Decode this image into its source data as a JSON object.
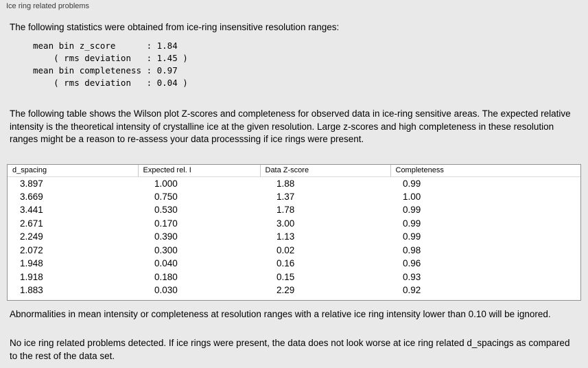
{
  "panel": {
    "title": "Ice ring related problems"
  },
  "stats": {
    "intro": "The following statistics were obtained from ice-ring insensitive resolution ranges:",
    "lines": [
      "mean bin z_score      : 1.84",
      "    ( rms deviation   : 1.45 )",
      "mean bin completeness : 0.97",
      "    ( rms deviation   : 0.04 )"
    ]
  },
  "table_intro": "The following table shows the Wilson plot Z-scores and completeness for observed data in ice-ring sensitive areas. The expected relative intensity is the theoretical intensity of crystalline ice at the given resolution. Large z-scores and high completeness in these resolution ranges might be a reason to re-assess your data processsing if ice rings were present.",
  "chart_data": {
    "type": "table",
    "columns": [
      "d_spacing",
      "Expected rel. I",
      "Data Z-score",
      "Completeness"
    ],
    "rows": [
      [
        "3.897",
        "1.000",
        "1.88",
        "0.99"
      ],
      [
        "3.669",
        "0.750",
        "1.37",
        "1.00"
      ],
      [
        "3.441",
        "0.530",
        "1.78",
        "0.99"
      ],
      [
        "2.671",
        "0.170",
        "3.00",
        "0.99"
      ],
      [
        "2.249",
        "0.390",
        "1.13",
        "0.99"
      ],
      [
        "2.072",
        "0.300",
        "0.02",
        "0.98"
      ],
      [
        "1.948",
        "0.040",
        "0.16",
        "0.96"
      ],
      [
        "1.918",
        "0.180",
        "0.15",
        "0.93"
      ],
      [
        "1.883",
        "0.030",
        "2.29",
        "0.92"
      ]
    ]
  },
  "notes": {
    "ignore_rule": "Abnormalities in mean intensity or completeness at resolution ranges with a relative ice ring intensity lower than 0.10 will be ignored.",
    "conclusion": "No ice ring related problems detected. If ice rings were present, the data does not look worse at ice ring related d_spacings as compared to the rest of the data set."
  }
}
